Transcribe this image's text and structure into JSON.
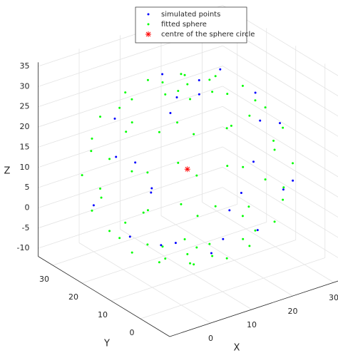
{
  "chart_data": {
    "type": "scatter3d",
    "xlabel": "X",
    "ylabel": "Y",
    "zlabel": "Z",
    "xlim": [
      -10,
      35
    ],
    "ylim": [
      -10,
      35
    ],
    "zlim": [
      -12,
      36
    ],
    "xticks": [
      0,
      10,
      20,
      30
    ],
    "yticks": [
      0,
      10,
      20,
      30
    ],
    "zticks": [
      -10,
      -5,
      0,
      5,
      10,
      15,
      20,
      25,
      30,
      35
    ],
    "grid": true,
    "legend": "north",
    "series": [
      {
        "name": "simulated points",
        "color": "#0000ff",
        "marker": "dot",
        "x": [
          32,
          25,
          4,
          -10,
          -6,
          6,
          22,
          30,
          28,
          16,
          -2,
          -7,
          14,
          24,
          26,
          12,
          -4,
          8,
          20,
          15,
          6,
          10,
          13,
          5,
          18,
          3
        ],
        "y": [
          18,
          29,
          28,
          16,
          2,
          -8,
          -4,
          4,
          14,
          29,
          20,
          6,
          -5,
          0,
          16,
          27,
          12,
          -3,
          2,
          15,
          10,
          16,
          8,
          14,
          12,
          8
        ],
        "z": [
          15,
          19,
          11,
          9,
          17,
          13,
          11,
          7,
          25,
          27,
          26,
          23,
          21,
          25,
          0,
          1,
          1,
          3,
          -1,
          32,
          33,
          -7,
          -7,
          -5,
          35,
          31
        ]
      },
      {
        "name": "fitted sphere",
        "color": "#00ff00",
        "marker": "dot",
        "x": [
          31,
          28.2,
          20.5,
          10,
          -0.5,
          -8.2,
          -11,
          -8.2,
          -0.5,
          10,
          20.5,
          28.2,
          29,
          26.5,
          19.5,
          10,
          0.5,
          -6.5,
          -9,
          -6.5,
          0.5,
          10,
          19.5,
          26.5,
          29,
          26.5,
          19.5,
          10,
          0.5,
          -6.5,
          -9,
          -6.5,
          0.5,
          10,
          19.5,
          26.5,
          23.5,
          21.7,
          16.8,
          10,
          3.2,
          -1.7,
          -3.5,
          -1.7,
          3.2,
          10,
          16.8,
          21.7,
          23.5,
          21.7,
          16.8,
          10,
          3.2,
          -1.7,
          -3.5,
          -1.7,
          3.2,
          10,
          16.8,
          21.7,
          15.4,
          12.7,
          7.3,
          4.6,
          7.3,
          12.7,
          15.4,
          12.7,
          7.3,
          4.6,
          7.3,
          12.7,
          10,
          10
        ],
        "y": [
          12,
          22.5,
          30.2,
          33,
          30.2,
          22.5,
          12,
          1.5,
          -6.2,
          -9,
          -6.2,
          1.5,
          12,
          21.5,
          28.5,
          31,
          28.5,
          21.5,
          12,
          2.5,
          -4.5,
          -7,
          -4.5,
          2.5,
          12,
          21.5,
          28.5,
          31,
          28.5,
          21.5,
          12,
          2.5,
          -4.5,
          -7,
          -4.5,
          2.5,
          12,
          18.8,
          23.7,
          25.5,
          23.7,
          18.8,
          12,
          5.2,
          0.3,
          -1.5,
          0.3,
          5.2,
          12,
          18.8,
          23.7,
          25.5,
          23.7,
          18.8,
          12,
          5.2,
          0.3,
          -1.5,
          0.3,
          5.2,
          12,
          16.7,
          16.7,
          12,
          7.3,
          7.3,
          12,
          16.7,
          16.7,
          12,
          7.3,
          7.3,
          12,
          12
        ],
        "z": [
          13,
          13,
          13,
          13,
          13,
          13,
          13,
          13,
          13,
          13,
          13,
          13,
          21.9,
          21.9,
          21.9,
          21.9,
          21.9,
          21.9,
          21.9,
          21.9,
          21.9,
          21.9,
          21.9,
          21.9,
          4.1,
          4.1,
          4.1,
          4.1,
          4.1,
          4.1,
          4.1,
          4.1,
          4.1,
          4.1,
          4.1,
          4.1,
          29.1,
          29.1,
          29.1,
          29.1,
          29.1,
          29.1,
          29.1,
          29.1,
          29.1,
          29.1,
          29.1,
          29.1,
          -3.1,
          -3.1,
          -3.1,
          -3.1,
          -3.1,
          -3.1,
          -3.1,
          -3.1,
          -3.1,
          -3.1,
          -3.1,
          -3.1,
          33.3,
          33.3,
          33.3,
          33.3,
          33.3,
          33.3,
          -7.3,
          -7.3,
          -7.3,
          -7.3,
          -7.3,
          -7.3,
          34,
          -8
        ]
      },
      {
        "name": "centre of the sphere circle",
        "color": "#ff0000",
        "marker": "asterisk",
        "x": [
          10
        ],
        "y": [
          12
        ],
        "z": [
          13
        ]
      }
    ]
  }
}
